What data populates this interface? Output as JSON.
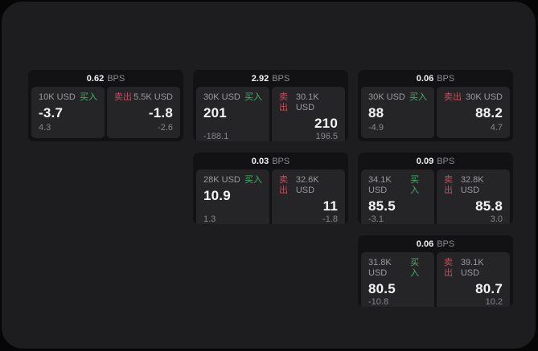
{
  "colors": {
    "page_background": "#060607",
    "panel_background": "#1d1d1f",
    "card_background": "#121214",
    "tile_background": "#252528",
    "primary_text": "#f5f5f6",
    "muted_text": "#9b9b9f",
    "delta_text": "#87878b",
    "buy_green": "#41b468",
    "sell_red": "#c54d5e"
  },
  "cards": [
    {
      "col": 1,
      "row": 1,
      "bps_value": "0.62",
      "bps_unit": "BPS",
      "buy": {
        "size": "10K USD",
        "side_label": "买入",
        "value": "-3.7",
        "delta": "4.3"
      },
      "sell": {
        "size": "5.5K USD",
        "side_label": "卖出",
        "value": "-1.8",
        "delta": "-2.6"
      }
    },
    {
      "col": 2,
      "row": 1,
      "bps_value": "2.92",
      "bps_unit": "BPS",
      "buy": {
        "size": "30K USD",
        "side_label": "买入",
        "value": "201",
        "delta": "-188.1"
      },
      "sell": {
        "size": "30.1K USD",
        "side_label": "卖出",
        "value": "210",
        "delta": "196.5"
      }
    },
    {
      "col": 3,
      "row": 1,
      "bps_value": "0.06",
      "bps_unit": "BPS",
      "buy": {
        "size": "30K USD",
        "side_label": "买入",
        "value": "88",
        "delta": "-4.9"
      },
      "sell": {
        "size": "30K USD",
        "side_label": "卖出",
        "value": "88.2",
        "delta": "4.7"
      }
    },
    {
      "col": 2,
      "row": 2,
      "bps_value": "0.03",
      "bps_unit": "BPS",
      "buy": {
        "size": "28K USD",
        "side_label": "买入",
        "value": "10.9",
        "delta": "1.3"
      },
      "sell": {
        "size": "32.6K USD",
        "side_label": "卖出",
        "value": "11",
        "delta": "-1.8"
      }
    },
    {
      "col": 3,
      "row": 2,
      "bps_value": "0.09",
      "bps_unit": "BPS",
      "buy": {
        "size": "34.1K USD",
        "side_label": "买入",
        "value": "85.5",
        "delta": "-3.1"
      },
      "sell": {
        "size": "32.8K USD",
        "side_label": "卖出",
        "value": "85.8",
        "delta": "3.0"
      }
    },
    {
      "col": 3,
      "row": 3,
      "bps_value": "0.06",
      "bps_unit": "BPS",
      "buy": {
        "size": "31.8K USD",
        "side_label": "买入",
        "value": "80.5",
        "delta": "-10.8"
      },
      "sell": {
        "size": "39.1K USD",
        "side_label": "卖出",
        "value": "80.7",
        "delta": "10.2"
      }
    }
  ]
}
